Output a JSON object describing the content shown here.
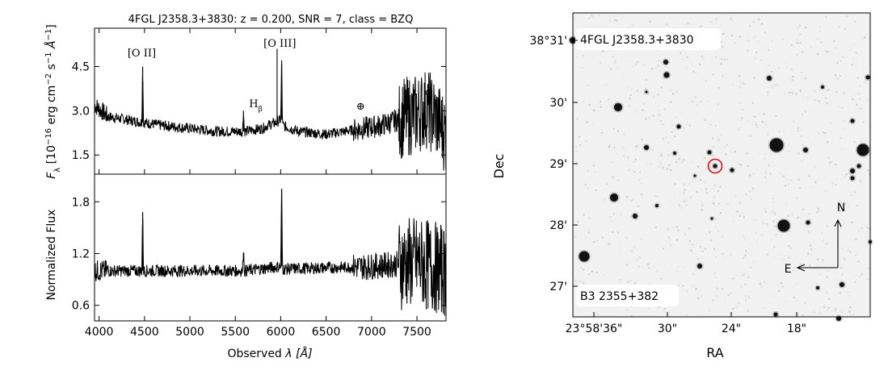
{
  "chart_data": [
    {
      "type": "line",
      "title": "4FGL J2358.3+3830: z = 0.200, SNR = 7, class = BZQ",
      "panel": "top",
      "ylabel": "F_λ [10^-16 erg cm^-2 s^-1 Å^-1]",
      "ylabel_parts": {
        "f": "F",
        "fsub": "λ",
        "pre": " [10",
        "exp16": "−16",
        "mid": " erg cm",
        "exp2": "−2",
        "s": " s",
        "exp1": "−1",
        "ang": " Å",
        "exp1b": "−1",
        "close": "]"
      },
      "xlim": [
        3950,
        7820
      ],
      "ylim": [
        0.85,
        5.8
      ],
      "yticks": [
        "1.5",
        "3.0",
        "4.5"
      ],
      "ytick_values": [
        1.5,
        3.0,
        4.5
      ],
      "series": [
        {
          "x": [
            3950,
            4100,
            4300,
            4470,
            4480,
            4490,
            4700,
            5000,
            5300,
            5580,
            5590,
            5600,
            5800,
            5850,
            5950,
            6000,
            6010,
            6020,
            6200,
            6500,
            6700,
            6900,
            7100,
            7300,
            7500,
            7600,
            7700,
            7820
          ],
          "y": [
            3.2,
            2.8,
            2.7,
            2.6,
            4.5,
            2.6,
            2.5,
            2.4,
            2.3,
            2.3,
            3.0,
            2.3,
            2.4,
            2.5,
            2.6,
            2.7,
            4.6,
            2.5,
            2.3,
            2.2,
            2.3,
            2.4,
            2.5,
            2.7,
            2.9,
            3.1,
            2.8,
            2.2
          ]
        }
      ],
      "annotations": [
        {
          "text": "[O II]",
          "x": 4470
        },
        {
          "text": "[O III]",
          "x": 5990
        },
        {
          "text": "H",
          "sub": "β",
          "x": 5850
        },
        {
          "text": "⊕",
          "x": 6880
        },
        {
          "text": "⊕",
          "x": 7630
        }
      ]
    },
    {
      "type": "line",
      "panel": "bottom",
      "ylabel": "Normalized Flux",
      "xlabel": "Observed λ [Å]",
      "xlabel_parts": {
        "pre": "Observed ",
        "lam": "λ",
        "unit": " [Å]"
      },
      "xlim": [
        3950,
        7820
      ],
      "ylim": [
        0.42,
        2.12
      ],
      "xticks": [
        "4000",
        "4500",
        "5000",
        "5500",
        "6000",
        "6500",
        "7000",
        "7500"
      ],
      "xtick_values": [
        4000,
        4500,
        5000,
        5500,
        6000,
        6500,
        7000,
        7500
      ],
      "yticks": [
        "0.6",
        "1.2",
        "1.8"
      ],
      "ytick_values": [
        0.6,
        1.2,
        1.8
      ],
      "series": [
        {
          "x": [
            3950,
            4470,
            4480,
            4490,
            5580,
            5590,
            5600,
            6000,
            6010,
            6020,
            7000,
            7500,
            7820
          ],
          "y": [
            1.0,
            1.0,
            1.68,
            1.0,
            1.0,
            1.28,
            1.0,
            1.05,
            1.95,
            1.02,
            1.05,
            1.1,
            1.0
          ]
        }
      ]
    },
    {
      "type": "scatter",
      "panel": "image",
      "xlabel": "RA",
      "ylabel": "Dec",
      "xticks": [
        "23°58'36\"",
        "30\"",
        "24\"",
        "18\""
      ],
      "yticks": [
        "38°31'",
        "30'",
        "29'",
        "28'",
        "27'"
      ],
      "top_label": "4FGL J2358.3+3830",
      "bottom_label": "B3 2355+382",
      "compass": {
        "north": "N",
        "east": "E"
      },
      "marker_color": "#e01010"
    }
  ]
}
